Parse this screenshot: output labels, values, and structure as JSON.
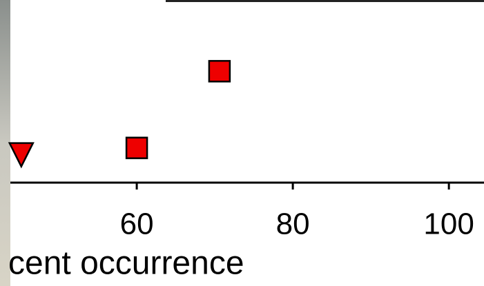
{
  "chart_data": {
    "type": "scatter",
    "xlabel": "cent occurrence",
    "xlim": [
      43.8,
      104.5
    ],
    "xticks": [
      60,
      80,
      100
    ],
    "ylim": [
      0,
      1
    ],
    "series": [
      {
        "marker": "square",
        "color": "#ee0000",
        "x": [
          60,
          70.6
        ],
        "values": [
          0.19,
          0.61
        ]
      },
      {
        "marker": "triangle-down",
        "color": "#ee0000",
        "x": [
          45.2
        ],
        "values": [
          0.16
        ]
      }
    ]
  }
}
